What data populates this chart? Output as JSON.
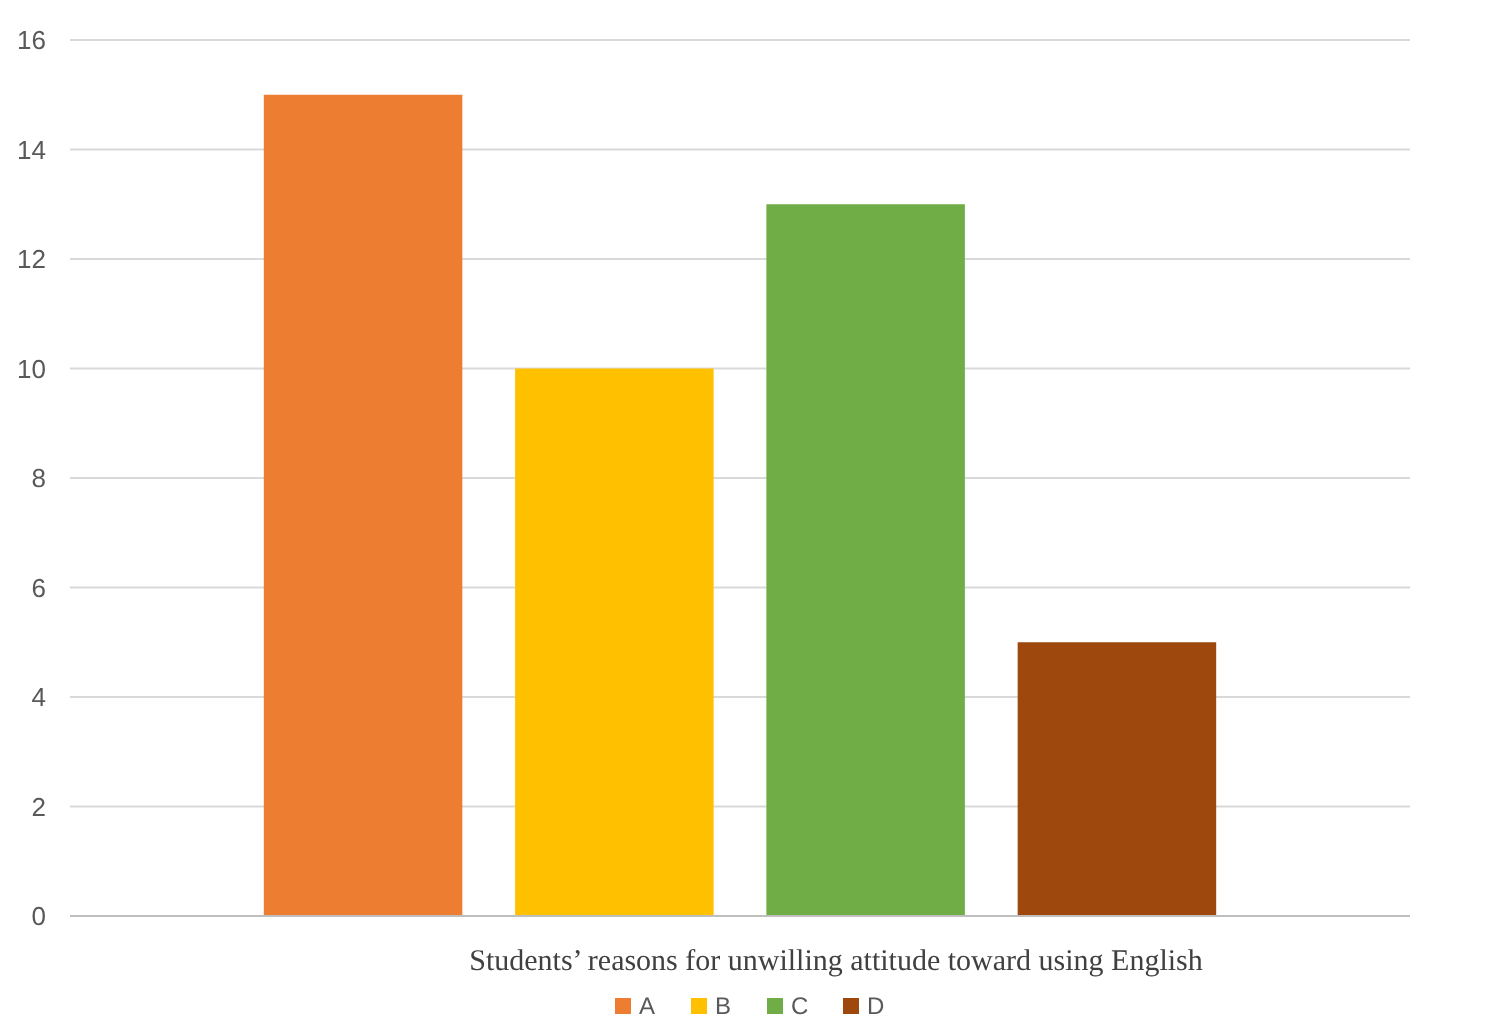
{
  "chart_data": {
    "type": "bar",
    "categories": [
      "Students’ reasons for unwilling attitude toward using English"
    ],
    "series": [
      {
        "name": "A",
        "color": "#ed7d31",
        "values": [
          15
        ]
      },
      {
        "name": "B",
        "color": "#ffc000",
        "values": [
          10
        ]
      },
      {
        "name": "C",
        "color": "#70ad47",
        "values": [
          13
        ]
      },
      {
        "name": "D",
        "color": "#9e480e",
        "values": [
          5
        ]
      }
    ],
    "ylim": [
      0,
      16
    ],
    "yticks": [
      0,
      2,
      4,
      6,
      8,
      10,
      12,
      14,
      16
    ],
    "grid": "y",
    "legend": "bottom"
  }
}
